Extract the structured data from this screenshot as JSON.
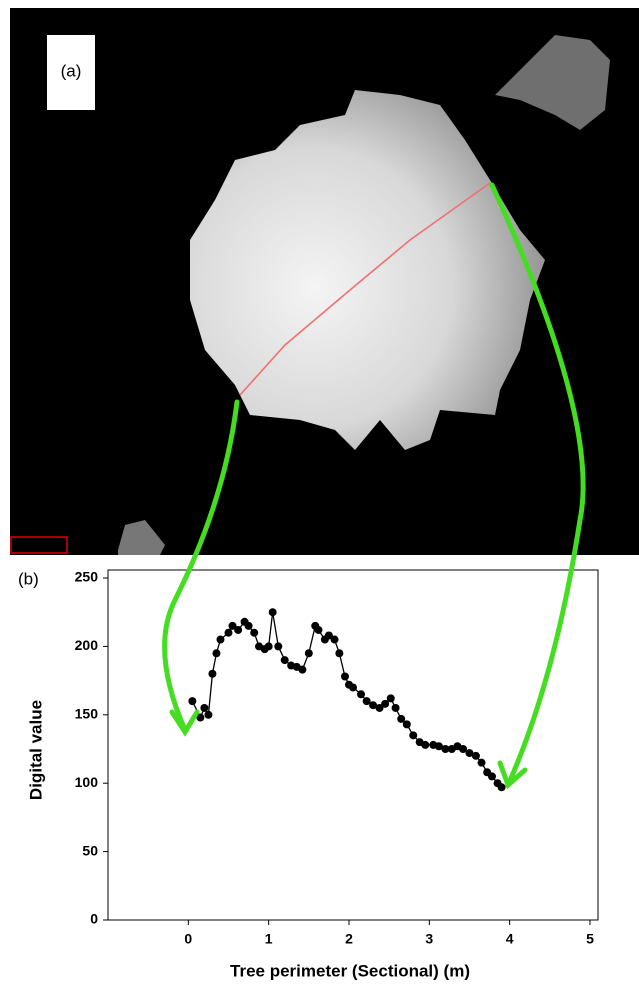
{
  "chart_data": {
    "type": "line",
    "annotations": [
      "(a)",
      "(b)"
    ],
    "x_label": "Tree perimeter (Sectional) (m)",
    "y_label": "Digital value",
    "xlim": [
      -1,
      5.1
    ],
    "ylim": [
      0,
      250
    ],
    "xticks": [
      0,
      1,
      2,
      3,
      4,
      5
    ],
    "yticks": [
      0,
      50,
      100,
      150,
      200,
      250
    ],
    "markers": true,
    "x": [
      0.05,
      0.15,
      0.2,
      0.25,
      0.3,
      0.35,
      0.4,
      0.5,
      0.55,
      0.62,
      0.7,
      0.75,
      0.82,
      0.88,
      0.95,
      1.0,
      1.05,
      1.12,
      1.2,
      1.28,
      1.35,
      1.42,
      1.5,
      1.58,
      1.62,
      1.7,
      1.75,
      1.82,
      1.88,
      1.95,
      2.0,
      2.05,
      2.15,
      2.22,
      2.3,
      2.38,
      2.45,
      2.52,
      2.58,
      2.65,
      2.72,
      2.8,
      2.88,
      2.95,
      3.05,
      3.12,
      3.2,
      3.28,
      3.35,
      3.42,
      3.5,
      3.58,
      3.65,
      3.72,
      3.78,
      3.85,
      3.9
    ],
    "series": [
      {
        "color": "#000000",
        "values": [
          160,
          148,
          155,
          150,
          180,
          195,
          205,
          210,
          215,
          212,
          218,
          215,
          210,
          200,
          198,
          200,
          225,
          200,
          190,
          186,
          185,
          183,
          195,
          215,
          212,
          205,
          208,
          205,
          195,
          178,
          172,
          170,
          165,
          160,
          157,
          155,
          158,
          162,
          155,
          147,
          143,
          135,
          130,
          128,
          128,
          127,
          125,
          125,
          127,
          125,
          122,
          120,
          115,
          108,
          105,
          100,
          97
        ]
      }
    ]
  }
}
